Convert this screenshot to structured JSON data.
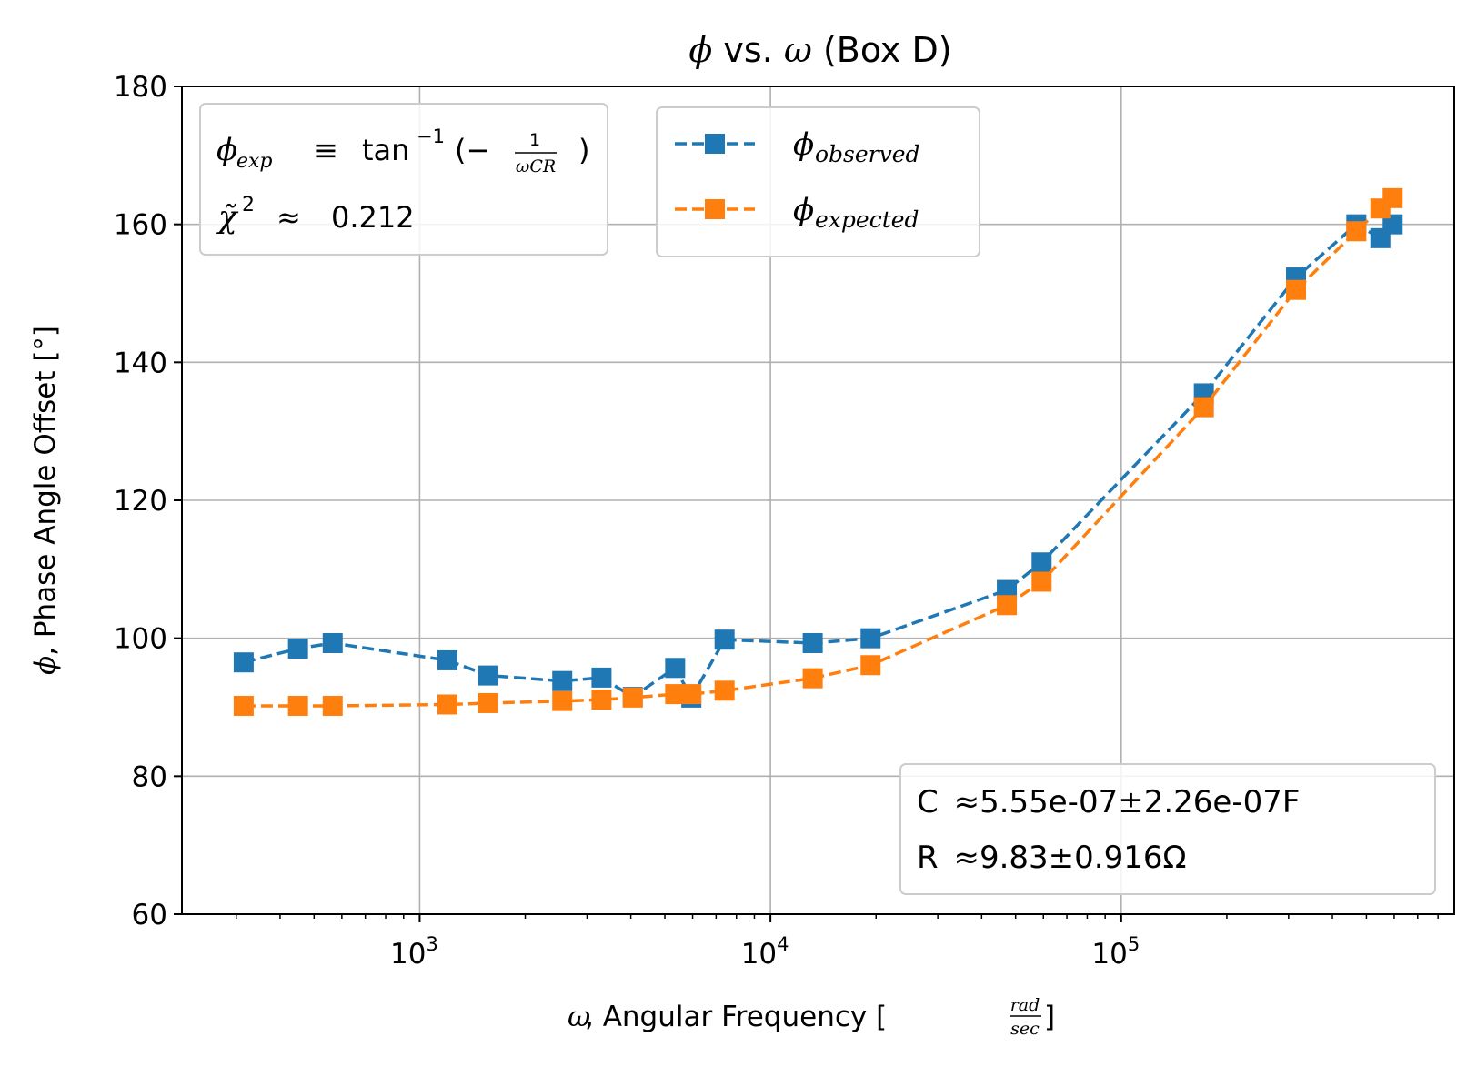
{
  "chart_data": {
    "type": "line",
    "title": {
      "sym_phi": "ϕ",
      "vs": " vs. ",
      "sym_omega": "ω",
      "rest": " (Box D)"
    },
    "xlabel": {
      "sym": "ω",
      "text": ", Angular Frequency [",
      "frac_num": "rad",
      "frac_den": "sec",
      "close": "]"
    },
    "ylabel": {
      "sym": "ϕ",
      "text": ", Phase Angle Offset [°]"
    },
    "x_scale": "log",
    "xlim": [
      210,
      890000
    ],
    "ylim": [
      60,
      180
    ],
    "grid": true,
    "x_ticks": [
      {
        "value": 1000,
        "base": "10",
        "exp": "3"
      },
      {
        "value": 10000,
        "base": "10",
        "exp": "4"
      },
      {
        "value": 100000,
        "base": "10",
        "exp": "5"
      }
    ],
    "y_ticks": [
      "60",
      "80",
      "100",
      "120",
      "140",
      "160",
      "180"
    ],
    "legend_position": "upper center",
    "series": [
      {
        "name": {
          "sym": "ϕ",
          "sub": "observed"
        },
        "color": "#1f77b4",
        "x": [
          315,
          450,
          565,
          1200,
          1570,
          2550,
          3300,
          4050,
          5350,
          5950,
          7400,
          13200,
          19300,
          47200,
          59300,
          172000,
          315000,
          468000,
          548000,
          594000
        ],
        "y": [
          96.5,
          98.5,
          99.3,
          96.8,
          94.6,
          93.8,
          94.3,
          91.5,
          95.7,
          91.4,
          99.8,
          99.3,
          100.0,
          107.0,
          111.0,
          135.5,
          152.3,
          160.0,
          158.0,
          160.0
        ]
      },
      {
        "name": {
          "sym": "ϕ",
          "sub": "expected"
        },
        "color": "#ff7f0e",
        "x": [
          315,
          450,
          565,
          1200,
          1570,
          2550,
          3300,
          4050,
          5350,
          5950,
          7400,
          13200,
          19300,
          47200,
          59300,
          172000,
          315000,
          468000,
          548000,
          594000
        ],
        "y": [
          90.2,
          90.2,
          90.2,
          90.4,
          90.6,
          90.9,
          91.1,
          91.4,
          91.9,
          91.9,
          92.4,
          94.2,
          96.1,
          104.8,
          108.2,
          133.5,
          150.5,
          159.0,
          162.3,
          163.8
        ]
      }
    ],
    "annotations": {
      "formula": {
        "lhs_sym": "ϕ",
        "lhs_sub": "exp",
        "equiv": "≡",
        "tan": "tan",
        "tan_sup": "−1",
        "lparen": "(−",
        "frac_num": "1",
        "frac_den": "ωCR",
        "rparen": ")"
      },
      "chi": {
        "sym": "χ̃",
        "sup": "2",
        "approx": "≈",
        "value": "0.212"
      },
      "params": [
        {
          "label": "C",
          "approx": "≈",
          "value": "5.55e-07±2.26e-07F"
        },
        {
          "label": "R",
          "approx": "≈",
          "value": "9.83±0.916Ω"
        }
      ]
    }
  }
}
